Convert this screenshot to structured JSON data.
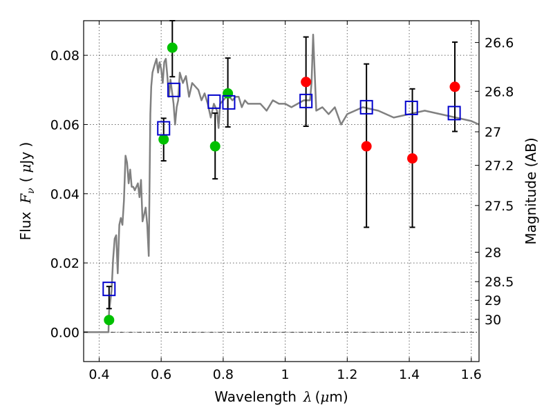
{
  "chart_data": {
    "type": "scatter",
    "xlabel": {
      "prefix": "Wavelength",
      "symbol": "λ",
      "open": "(",
      "unit_prefix": "μ",
      "unit": "m)"
    },
    "ylabel": {
      "prefix": "Flux",
      "symbol_main": "F",
      "symbol_sub": "ν",
      "open": "(",
      "unit_prefix": "μ",
      "unit": "Jy )"
    },
    "y2label": "Magnitude (AB)",
    "xlim": [
      0.35,
      1.625
    ],
    "ylim": [
      -0.0085,
      0.09
    ],
    "grid": true,
    "x_ticks": [
      0.4,
      0.6,
      0.8,
      1.0,
      1.2,
      1.4,
      1.6
    ],
    "x_tick_labels": [
      "0.4",
      "0.6",
      "0.8",
      "1",
      "1.2",
      "1.4",
      "1.6"
    ],
    "y_ticks": [
      0.0,
      0.02,
      0.04,
      0.06,
      0.08
    ],
    "y_tick_labels": [
      "0.00",
      "0.02",
      "0.04",
      "0.06",
      "0.08"
    ],
    "y2_ticks": [
      {
        "label": "26.6",
        "flux": 0.0837
      },
      {
        "label": "26.8",
        "flux": 0.0696
      },
      {
        "label": "27",
        "flux": 0.0579
      },
      {
        "label": "27.2",
        "flux": 0.0482
      },
      {
        "label": "27.5",
        "flux": 0.0366
      },
      {
        "label": "28",
        "flux": 0.0231
      },
      {
        "label": "28.5",
        "flux": 0.0146
      },
      {
        "label": "29",
        "flux": 0.0092
      },
      {
        "label": "30",
        "flux": 0.0037
      }
    ],
    "colors": {
      "model": "#808080",
      "green_points": "#00c000",
      "red_points": "#ff0000",
      "squares": "#0000cc",
      "errorbars": "#000000"
    },
    "model_spectrum": {
      "x": [
        0.35,
        0.43,
        0.432,
        0.44,
        0.445,
        0.45,
        0.455,
        0.46,
        0.465,
        0.47,
        0.475,
        0.48,
        0.485,
        0.49,
        0.495,
        0.5,
        0.505,
        0.51,
        0.515,
        0.52,
        0.525,
        0.53,
        0.535,
        0.54,
        0.545,
        0.55,
        0.555,
        0.56,
        0.565,
        0.568,
        0.572,
        0.578,
        0.585,
        0.59,
        0.595,
        0.6,
        0.605,
        0.61,
        0.615,
        0.62,
        0.625,
        0.63,
        0.64,
        0.645,
        0.65,
        0.655,
        0.66,
        0.67,
        0.68,
        0.69,
        0.7,
        0.71,
        0.72,
        0.73,
        0.74,
        0.75,
        0.76,
        0.77,
        0.78,
        0.785,
        0.79,
        0.8,
        0.81,
        0.82,
        0.83,
        0.84,
        0.85,
        0.86,
        0.87,
        0.88,
        0.9,
        0.92,
        0.94,
        0.96,
        0.98,
        1.0,
        1.02,
        1.04,
        1.06,
        1.08,
        1.085,
        1.09,
        1.1,
        1.12,
        1.14,
        1.16,
        1.18,
        1.2,
        1.25,
        1.3,
        1.35,
        1.4,
        1.45,
        1.5,
        1.55,
        1.6,
        1.625
      ],
      "y": [
        0.0,
        0.0,
        0.006,
        0.012,
        0.021,
        0.027,
        0.028,
        0.017,
        0.031,
        0.033,
        0.031,
        0.038,
        0.051,
        0.049,
        0.043,
        0.047,
        0.042,
        0.042,
        0.041,
        0.042,
        0.043,
        0.039,
        0.044,
        0.032,
        0.034,
        0.036,
        0.031,
        0.022,
        0.063,
        0.071,
        0.075,
        0.077,
        0.079,
        0.075,
        0.078,
        0.076,
        0.072,
        0.078,
        0.079,
        0.074,
        0.068,
        0.073,
        0.066,
        0.06,
        0.065,
        0.067,
        0.075,
        0.072,
        0.074,
        0.068,
        0.072,
        0.071,
        0.07,
        0.067,
        0.069,
        0.066,
        0.062,
        0.066,
        0.064,
        0.059,
        0.066,
        0.067,
        0.068,
        0.068,
        0.067,
        0.068,
        0.068,
        0.065,
        0.067,
        0.066,
        0.066,
        0.066,
        0.064,
        0.067,
        0.066,
        0.066,
        0.065,
        0.066,
        0.067,
        0.067,
        0.072,
        0.086,
        0.064,
        0.065,
        0.063,
        0.065,
        0.06,
        0.063,
        0.065,
        0.064,
        0.062,
        0.063,
        0.064,
        0.063,
        0.062,
        0.061,
        0.06
      ]
    },
    "series": [
      {
        "marker": "circle-green",
        "x": [
          0.432,
          0.608,
          0.636,
          0.774,
          0.815
        ],
        "y": [
          0.0035,
          0.0557,
          0.0822,
          0.0537,
          0.069
        ],
        "err_low": [
          0.0068,
          0.0495,
          0.0738,
          0.0443,
          0.0593
        ],
        "err_high": [
          0.0132,
          0.0618,
          0.09,
          0.0633,
          0.0792
        ]
      },
      {
        "marker": "circle-red",
        "x": [
          1.067,
          1.262,
          1.41,
          1.547
        ],
        "y": [
          0.0723,
          0.0537,
          0.0502,
          0.0709
        ],
        "err_low": [
          0.0595,
          0.0303,
          0.0303,
          0.058
        ],
        "err_high": [
          0.0853,
          0.0775,
          0.0703,
          0.0838
        ]
      },
      {
        "marker": "square-blue",
        "x": [
          0.432,
          0.608,
          0.641,
          0.771,
          0.818,
          1.067,
          1.262,
          1.407,
          1.545
        ],
        "y": [
          0.0125,
          0.0589,
          0.07,
          0.0666,
          0.0664,
          0.0668,
          0.065,
          0.0648,
          0.0633
        ]
      }
    ]
  }
}
